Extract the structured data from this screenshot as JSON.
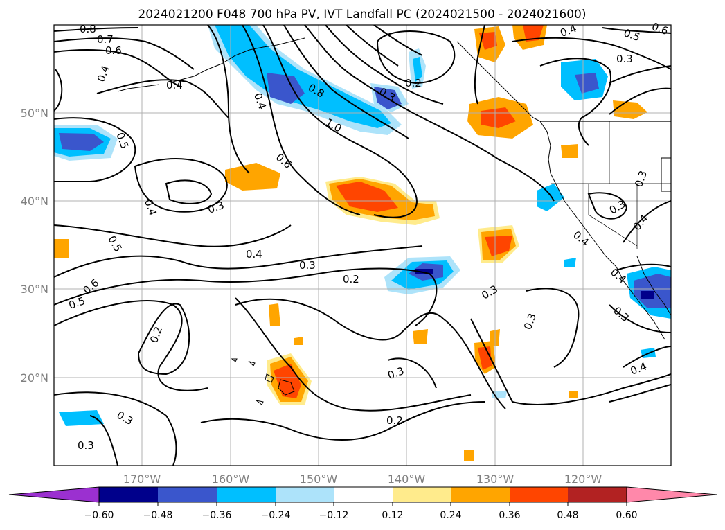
{
  "figure": {
    "title": "2024021200 F048 700 hPa PV, IVT Landfall PC (2024021500 - 2024021600)"
  },
  "axes": {
    "lat_ticks": [
      "50°N",
      "40°N",
      "30°N",
      "20°N"
    ],
    "lon_ticks": [
      "170°W",
      "160°W",
      "150°W",
      "140°W",
      "130°W",
      "120°W"
    ],
    "grid": true
  },
  "colorbar": {
    "ticks": [
      "−0.60",
      "−0.48",
      "−0.36",
      "−0.24",
      "−0.12",
      "0.12",
      "0.24",
      "0.36",
      "0.48",
      "0.60"
    ],
    "colors": {
      "under": "#9b30d0",
      "bins": [
        "#00008b",
        "#3a56cc",
        "#00bfff",
        "#ade3fa",
        "#ffffff",
        "#ffeb8c",
        "#ffa500",
        "#ff4500",
        "#b22222"
      ],
      "over": "#ff88aa"
    }
  },
  "contour_labels": [
    "0.8",
    "0.7",
    "0.6",
    "0.4",
    "0.4",
    "0.5",
    "0.3",
    "0.2",
    "0.8",
    "1.0",
    "0.6",
    "0.3",
    "0.4",
    "0.3",
    "0.5",
    "0.6",
    "0.5",
    "0.4",
    "0.3",
    "0.2",
    "0.3",
    "0.3",
    "0.2",
    "0.3",
    "0.3",
    "0.2",
    "0.3",
    "0.4",
    "0.3",
    "0.4",
    "0.4",
    "0.3",
    "0.4",
    "0.3",
    "0.5",
    "0.6",
    "0.4",
    "0.4"
  ]
}
